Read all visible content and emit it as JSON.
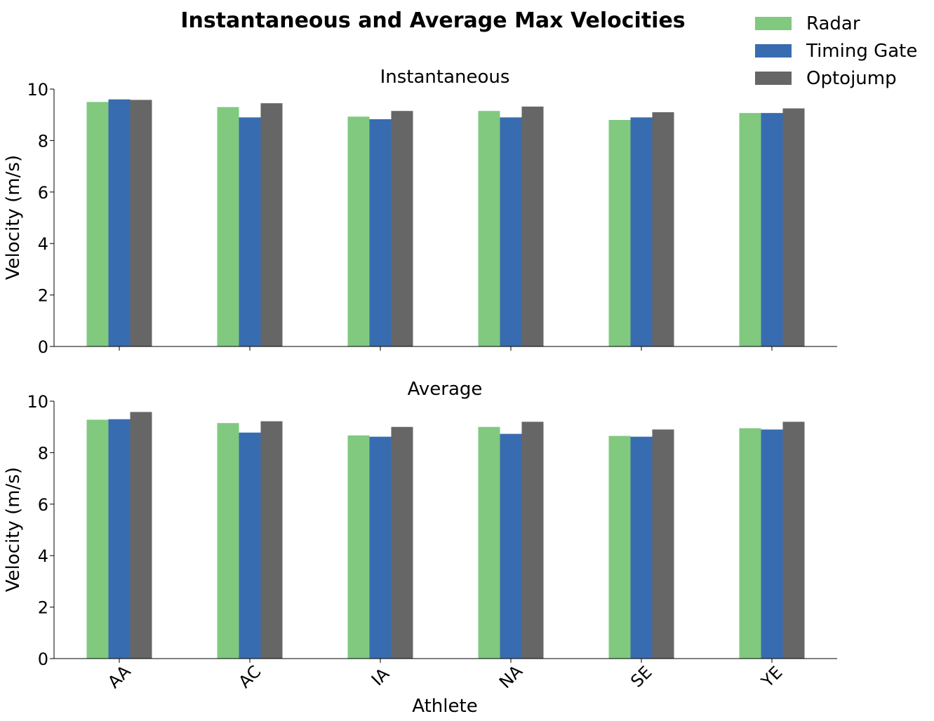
{
  "figure": {
    "title": "Instantaneous and Average Max Velocities",
    "legend_placement": "top-right",
    "colors": {
      "Radar": "#80c97f",
      "Timing Gate": "#386cb0",
      "Optojump": "#666666"
    }
  },
  "chart_data": [
    {
      "type": "bar",
      "title": "Instantaneous",
      "xlabel": "",
      "ylabel": "Velocity (m/s)",
      "ylim": [
        0,
        10
      ],
      "yticks": [
        0,
        2,
        4,
        6,
        8,
        10
      ],
      "categories": [
        "AA",
        "AC",
        "IA",
        "NA",
        "SE",
        "YE"
      ],
      "series": [
        {
          "name": "Radar",
          "values": [
            9.5,
            9.3,
            8.93,
            9.15,
            8.8,
            9.07
          ]
        },
        {
          "name": "Timing Gate",
          "values": [
            9.6,
            8.9,
            8.83,
            8.9,
            8.9,
            9.07
          ]
        },
        {
          "name": "Optojump",
          "values": [
            9.58,
            9.45,
            9.15,
            9.32,
            9.1,
            9.25
          ]
        }
      ],
      "grid": false,
      "show_xticklabels": false
    },
    {
      "type": "bar",
      "title": "Average",
      "xlabel": "Athlete",
      "ylabel": "Velocity (m/s)",
      "ylim": [
        0,
        10
      ],
      "yticks": [
        0,
        2,
        4,
        6,
        8,
        10
      ],
      "categories": [
        "AA",
        "AC",
        "IA",
        "NA",
        "SE",
        "YE"
      ],
      "series": [
        {
          "name": "Radar",
          "values": [
            9.28,
            9.15,
            8.67,
            9.0,
            8.65,
            8.95
          ]
        },
        {
          "name": "Timing Gate",
          "values": [
            9.3,
            8.78,
            8.62,
            8.73,
            8.62,
            8.9
          ]
        },
        {
          "name": "Optojump",
          "values": [
            9.58,
            9.22,
            9.0,
            9.2,
            8.9,
            9.2
          ]
        }
      ],
      "grid": false,
      "show_xticklabels": true
    }
  ]
}
